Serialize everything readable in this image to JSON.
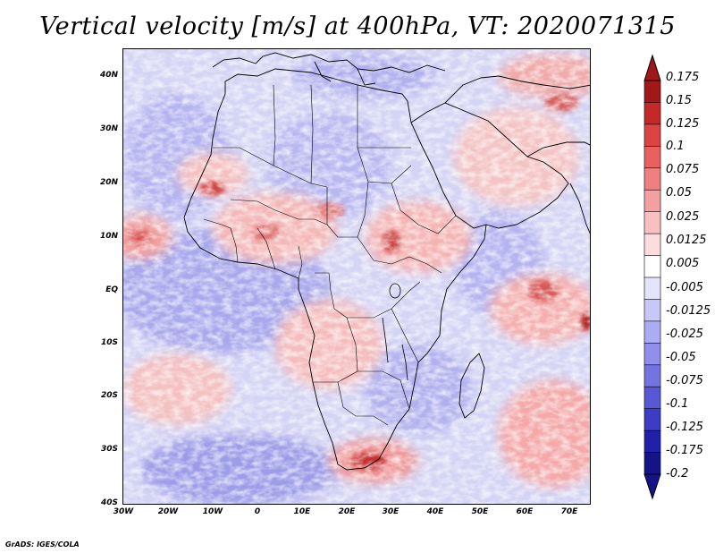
{
  "title": "Vertical velocity [m/s] at 400hPa, VT: 2020071315",
  "credit": "GrADS: IGES/COLA",
  "map": {
    "lon_range": [
      -30,
      75
    ],
    "lat_range": [
      -40,
      45
    ],
    "lat_ticks": [
      {
        "value": 40,
        "label": "40N"
      },
      {
        "value": 30,
        "label": "30N"
      },
      {
        "value": 20,
        "label": "20N"
      },
      {
        "value": 10,
        "label": "10N"
      },
      {
        "value": 0,
        "label": "EQ"
      },
      {
        "value": -10,
        "label": "10S"
      },
      {
        "value": -20,
        "label": "20S"
      },
      {
        "value": -30,
        "label": "30S"
      },
      {
        "value": -40,
        "label": "40S"
      }
    ],
    "lon_ticks": [
      {
        "value": -30,
        "label": "30W"
      },
      {
        "value": -20,
        "label": "20W"
      },
      {
        "value": -10,
        "label": "10W"
      },
      {
        "value": 0,
        "label": "0"
      },
      {
        "value": 10,
        "label": "10E"
      },
      {
        "value": 20,
        "label": "20E"
      },
      {
        "value": 30,
        "label": "30E"
      },
      {
        "value": 40,
        "label": "40E"
      },
      {
        "value": 50,
        "label": "50E"
      },
      {
        "value": 60,
        "label": "60E"
      },
      {
        "value": 70,
        "label": "70E"
      }
    ]
  },
  "colorbar": {
    "labels": [
      "0.175",
      "0.15",
      "0.125",
      "0.1",
      "0.075",
      "0.05",
      "0.025",
      "0.0125",
      "0.005",
      "-0.005",
      "-0.0125",
      "-0.025",
      "-0.05",
      "-0.075",
      "-0.1",
      "-0.125",
      "-0.175",
      "-0.2"
    ],
    "colors": [
      "#a01818",
      "#c42828",
      "#dc4444",
      "#e86060",
      "#f08080",
      "#f4a0a0",
      "#f8c0c0",
      "#fcdcdc",
      "#ffffff",
      "#e4e4fc",
      "#c8c8f8",
      "#acacf4",
      "#9090ec",
      "#7474e0",
      "#5858d4",
      "#3c3cc4",
      "#2020a8",
      "#141488"
    ],
    "top_tip_color": "#a01818",
    "bottom_tip_color": "#141488"
  }
}
